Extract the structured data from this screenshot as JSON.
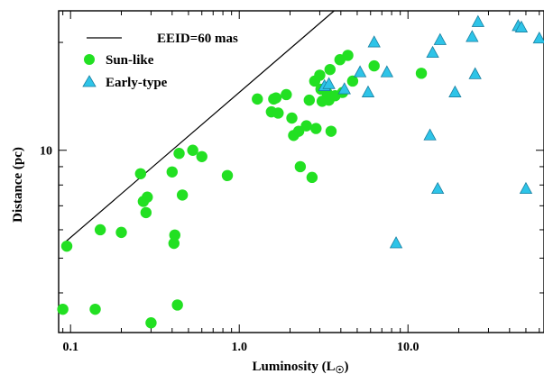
{
  "chart_data": {
    "type": "scatter",
    "title": "",
    "xlabel": "Luminosity (L",
    "xlabel_symbol": "☉",
    "xlabel_close": ")",
    "ylabel": "Distance (pc)",
    "x_scale": "log",
    "y_scale": "log",
    "xlim": [
      0.085,
      64
    ],
    "ylim": [
      3.1,
      24.5
    ],
    "x_ticks": [
      {
        "value": 0.1,
        "label": "0.1"
      },
      {
        "value": 1.0,
        "label": "1.0"
      },
      {
        "value": 10.0,
        "label": "10.0"
      }
    ],
    "y_ticks": [
      {
        "value": 10,
        "label": "10"
      }
    ],
    "grid": false,
    "legend_position": "top-left",
    "legend": [
      {
        "kind": "line",
        "label": "EEID=60 mas"
      },
      {
        "kind": "circle",
        "label": "Sun-like"
      },
      {
        "kind": "triangle",
        "label": "Early-type"
      }
    ],
    "colors": {
      "sun_like": "#22e022",
      "early_type": "#2ec4e8",
      "line": "#000000"
    },
    "line": {
      "name": "EEID=60 mas",
      "x": [
        0.092,
        3.65
      ],
      "y": [
        5.52,
        24.5
      ]
    },
    "series": [
      {
        "name": "Sun-like",
        "marker": "circle",
        "points": [
          [
            0.09,
            3.6
          ],
          [
            0.095,
            5.4
          ],
          [
            0.14,
            3.6
          ],
          [
            0.15,
            6.0
          ],
          [
            0.2,
            5.9
          ],
          [
            0.26,
            8.6
          ],
          [
            0.27,
            7.2
          ],
          [
            0.28,
            6.7
          ],
          [
            0.285,
            7.4
          ],
          [
            0.3,
            3.3
          ],
          [
            0.4,
            8.7
          ],
          [
            0.41,
            5.5
          ],
          [
            0.415,
            5.8
          ],
          [
            0.43,
            3.7
          ],
          [
            0.44,
            9.8
          ],
          [
            0.46,
            7.5
          ],
          [
            0.53,
            10.0
          ],
          [
            0.6,
            9.6
          ],
          [
            0.85,
            8.5
          ],
          [
            1.28,
            13.9
          ],
          [
            1.55,
            12.8
          ],
          [
            1.6,
            13.9
          ],
          [
            1.65,
            14.0
          ],
          [
            1.7,
            12.7
          ],
          [
            1.9,
            14.3
          ],
          [
            2.05,
            12.3
          ],
          [
            2.1,
            11.0
          ],
          [
            2.25,
            11.3
          ],
          [
            2.3,
            9.0
          ],
          [
            2.5,
            11.7
          ],
          [
            2.6,
            13.8
          ],
          [
            2.7,
            8.4
          ],
          [
            2.8,
            15.6
          ],
          [
            2.85,
            11.5
          ],
          [
            3.0,
            16.2
          ],
          [
            3.05,
            14.8
          ],
          [
            3.1,
            13.7
          ],
          [
            3.3,
            14.5
          ],
          [
            3.4,
            13.8
          ],
          [
            3.45,
            16.8
          ],
          [
            3.5,
            11.3
          ],
          [
            3.7,
            14.2
          ],
          [
            3.95,
            17.9
          ],
          [
            4.1,
            14.5
          ],
          [
            4.4,
            18.4
          ],
          [
            4.7,
            15.6
          ],
          [
            6.3,
            17.2
          ],
          [
            12.0,
            16.4
          ]
        ]
      },
      {
        "name": "Early-type",
        "marker": "triangle",
        "points": [
          [
            3.2,
            15.1
          ],
          [
            3.4,
            15.3
          ],
          [
            4.2,
            14.8
          ],
          [
            5.2,
            16.5
          ],
          [
            5.8,
            14.5
          ],
          [
            6.3,
            20.0
          ],
          [
            7.5,
            16.5
          ],
          [
            8.5,
            5.5
          ],
          [
            13.5,
            11.0
          ],
          [
            14.0,
            18.7
          ],
          [
            15.0,
            7.8
          ],
          [
            15.5,
            20.3
          ],
          [
            19.0,
            14.5
          ],
          [
            24.0,
            20.7
          ],
          [
            25.0,
            16.3
          ],
          [
            26.0,
            22.8
          ],
          [
            45.0,
            22.2
          ],
          [
            47.0,
            22.0
          ],
          [
            50.0,
            7.8
          ],
          [
            60.0,
            20.5
          ]
        ]
      }
    ]
  }
}
